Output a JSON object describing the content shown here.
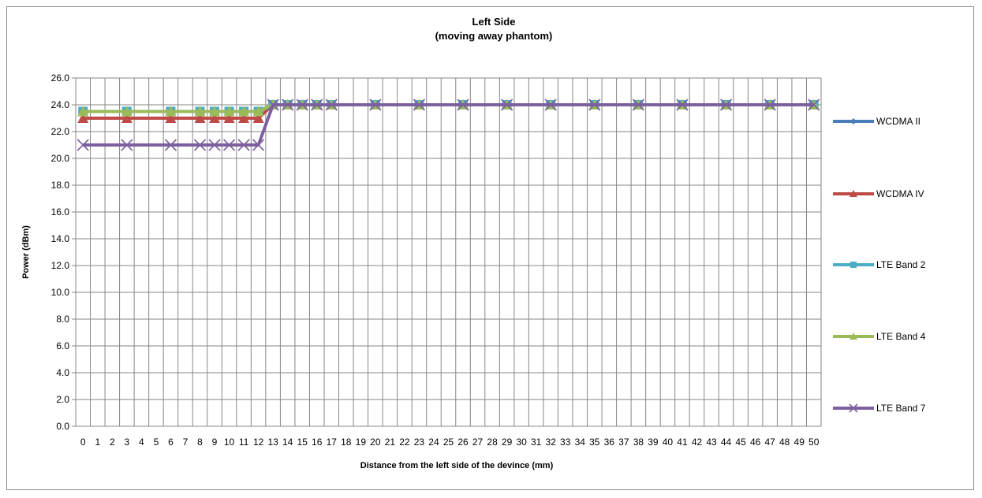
{
  "chart_data": {
    "type": "line",
    "title": "Left Side",
    "subtitle": "(moving away phantom)",
    "xlabel": "Distance from the left side of the devince (mm)",
    "ylabel": "Power (dBm)",
    "x": [
      0,
      1,
      2,
      3,
      4,
      5,
      6,
      7,
      8,
      9,
      10,
      11,
      12,
      13,
      14,
      15,
      16,
      17,
      18,
      19,
      20,
      21,
      22,
      23,
      24,
      25,
      26,
      27,
      28,
      29,
      30,
      31,
      32,
      33,
      34,
      35,
      36,
      37,
      38,
      39,
      40,
      41,
      42,
      43,
      44,
      45,
      46,
      47,
      48,
      49,
      50
    ],
    "x_tick_labels": [
      "0",
      "1",
      "2",
      "3",
      "4",
      "5",
      "6",
      "7",
      "8",
      "9",
      "10",
      "11",
      "12",
      "13",
      "14",
      "15",
      "16",
      "17",
      "18",
      "19",
      "20",
      "21",
      "22",
      "23",
      "24",
      "25",
      "26",
      "27",
      "28",
      "29",
      "30",
      "31",
      "32",
      "33",
      "34",
      "35",
      "36",
      "37",
      "38",
      "39",
      "40",
      "41",
      "42",
      "43",
      "44",
      "45",
      "46",
      "47",
      "48",
      "49",
      "50"
    ],
    "y_tick_labels": [
      "0.0",
      "2.0",
      "4.0",
      "6.0",
      "8.0",
      "10.0",
      "12.0",
      "14.0",
      "16.0",
      "18.0",
      "20.0",
      "22.0",
      "24.0",
      "26.0"
    ],
    "ylim": [
      0,
      26
    ],
    "grid": true,
    "legend_position": "right",
    "series": [
      {
        "name": "WCDMA  II",
        "color": "#4a7ebb",
        "marker": "diamond",
        "x": [
          0,
          3,
          6,
          8,
          9,
          10,
          11,
          12,
          13,
          14,
          15,
          16,
          17,
          20,
          23,
          26,
          29,
          32,
          35,
          38,
          41,
          44,
          47,
          50
        ],
        "values": [
          23.5,
          23.5,
          23.5,
          23.5,
          23.5,
          23.5,
          23.5,
          23.5,
          24,
          24,
          24,
          24,
          24,
          24,
          24,
          24,
          24,
          24,
          24,
          24,
          24,
          24,
          24,
          24
        ]
      },
      {
        "name": "WCDMA  IV",
        "color": "#be4b48",
        "marker": "triangle",
        "x": [
          0,
          3,
          6,
          8,
          9,
          10,
          11,
          12,
          13,
          14,
          15,
          16,
          17,
          20,
          23,
          26,
          29,
          32,
          35,
          38,
          41,
          44,
          47,
          50
        ],
        "values": [
          23,
          23,
          23,
          23,
          23,
          23,
          23,
          23,
          24,
          24,
          24,
          24,
          24,
          24,
          24,
          24,
          24,
          24,
          24,
          24,
          24,
          24,
          24,
          24
        ]
      },
      {
        "name": "LTE Band 2",
        "color": "#4bacc6",
        "marker": "square",
        "x": [
          0,
          3,
          6,
          8,
          9,
          10,
          11,
          12,
          13,
          14,
          15,
          16,
          17,
          20,
          23,
          26,
          29,
          32,
          35,
          38,
          41,
          44,
          47,
          50
        ],
        "values": [
          23.5,
          23.5,
          23.5,
          23.5,
          23.5,
          23.5,
          23.5,
          23.5,
          24,
          24,
          24,
          24,
          24,
          24,
          24,
          24,
          24,
          24,
          24,
          24,
          24,
          24,
          24,
          24
        ]
      },
      {
        "name": "LTE Band 4",
        "color": "#9bbb59",
        "marker": "triangle",
        "x": [
          0,
          3,
          6,
          8,
          9,
          10,
          11,
          12,
          13,
          14,
          15,
          16,
          17,
          20,
          23,
          26,
          29,
          32,
          35,
          38,
          41,
          44,
          47,
          50
        ],
        "values": [
          23.5,
          23.5,
          23.5,
          23.5,
          23.5,
          23.5,
          23.5,
          23.5,
          24,
          24,
          24,
          24,
          24,
          24,
          24,
          24,
          24,
          24,
          24,
          24,
          24,
          24,
          24,
          24
        ]
      },
      {
        "name": "LTE Band 7",
        "color": "#7d5fa0",
        "marker": "x",
        "x": [
          0,
          3,
          6,
          8,
          9,
          10,
          11,
          12,
          13,
          14,
          15,
          16,
          17,
          20,
          23,
          26,
          29,
          32,
          35,
          38,
          41,
          44,
          47,
          50
        ],
        "values": [
          21,
          21,
          21,
          21,
          21,
          21,
          21,
          21,
          24,
          24,
          24,
          24,
          24,
          24,
          24,
          24,
          24,
          24,
          24,
          24,
          24,
          24,
          24,
          24
        ]
      }
    ]
  }
}
